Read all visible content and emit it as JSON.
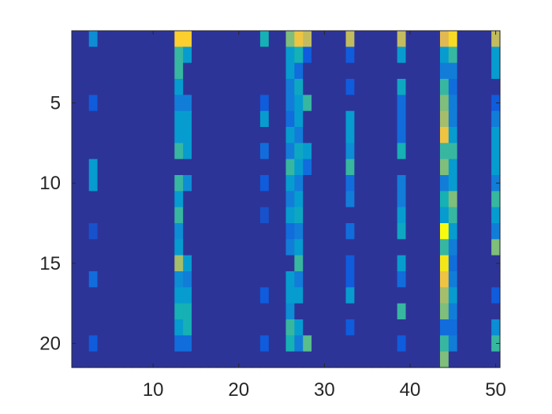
{
  "chart_data": {
    "type": "heatmap",
    "title": "",
    "xlabel": "",
    "ylabel": "",
    "n_cols": 50,
    "n_rows": 21,
    "xlim": [
      0.5,
      50.5
    ],
    "ylim": [
      0.5,
      21.5
    ],
    "y_direction": "reverse",
    "grid": false,
    "colormap": "parula",
    "clim": [
      0,
      1
    ],
    "x_ticks": [
      10,
      20,
      30,
      40,
      50
    ],
    "x_tick_labels": [
      "10",
      "20",
      "30",
      "40",
      "50"
    ],
    "y_ticks": [
      5,
      10,
      15,
      20
    ],
    "y_tick_labels": [
      "5",
      "10",
      "15",
      "20"
    ],
    "background_value": 0.02,
    "cells": [
      {
        "col": 3,
        "row": 1,
        "value": 0.25
      },
      {
        "col": 3,
        "row": 5,
        "value": 0.1
      },
      {
        "col": 3,
        "row": 9,
        "value": 0.3
      },
      {
        "col": 3,
        "row": 10,
        "value": 0.3
      },
      {
        "col": 3,
        "row": 13,
        "value": 0.08
      },
      {
        "col": 3,
        "row": 16,
        "value": 0.15
      },
      {
        "col": 3,
        "row": 20,
        "value": 0.1
      },
      {
        "col": 13,
        "row": 1,
        "value": 0.8
      },
      {
        "col": 14,
        "row": 1,
        "value": 0.8
      },
      {
        "col": 13,
        "row": 2,
        "value": 0.45
      },
      {
        "col": 14,
        "row": 2,
        "value": 0.3
      },
      {
        "col": 13,
        "row": 3,
        "value": 0.45
      },
      {
        "col": 13,
        "row": 4,
        "value": 0.3
      },
      {
        "col": 13,
        "row": 5,
        "value": 0.2
      },
      {
        "col": 14,
        "row": 5,
        "value": 0.2
      },
      {
        "col": 13,
        "row": 6,
        "value": 0.3
      },
      {
        "col": 14,
        "row": 6,
        "value": 0.3
      },
      {
        "col": 13,
        "row": 7,
        "value": 0.3
      },
      {
        "col": 14,
        "row": 7,
        "value": 0.3
      },
      {
        "col": 13,
        "row": 8,
        "value": 0.45
      },
      {
        "col": 14,
        "row": 8,
        "value": 0.3
      },
      {
        "col": 13,
        "row": 10,
        "value": 0.45
      },
      {
        "col": 14,
        "row": 10,
        "value": 0.25
      },
      {
        "col": 13,
        "row": 11,
        "value": 0.3
      },
      {
        "col": 13,
        "row": 12,
        "value": 0.45
      },
      {
        "col": 13,
        "row": 13,
        "value": 0.25
      },
      {
        "col": 13,
        "row": 14,
        "value": 0.3
      },
      {
        "col": 13,
        "row": 15,
        "value": 0.6
      },
      {
        "col": 14,
        "row": 15,
        "value": 0.3
      },
      {
        "col": 13,
        "row": 16,
        "value": 0.25
      },
      {
        "col": 14,
        "row": 16,
        "value": 0.2
      },
      {
        "col": 13,
        "row": 17,
        "value": 0.3
      },
      {
        "col": 14,
        "row": 17,
        "value": 0.3
      },
      {
        "col": 13,
        "row": 18,
        "value": 0.4
      },
      {
        "col": 14,
        "row": 18,
        "value": 0.4
      },
      {
        "col": 13,
        "row": 19,
        "value": 0.3
      },
      {
        "col": 14,
        "row": 19,
        "value": 0.4
      },
      {
        "col": 13,
        "row": 20,
        "value": 0.15
      },
      {
        "col": 14,
        "row": 20,
        "value": 0.15
      },
      {
        "col": 23,
        "row": 1,
        "value": 0.4
      },
      {
        "col": 23,
        "row": 5,
        "value": 0.1
      },
      {
        "col": 23,
        "row": 6,
        "value": 0.3
      },
      {
        "col": 23,
        "row": 8,
        "value": 0.15
      },
      {
        "col": 23,
        "row": 10,
        "value": 0.1
      },
      {
        "col": 23,
        "row": 12,
        "value": 0.08
      },
      {
        "col": 23,
        "row": 17,
        "value": 0.1
      },
      {
        "col": 23,
        "row": 20,
        "value": 0.1
      },
      {
        "col": 26,
        "row": 1,
        "value": 0.55
      },
      {
        "col": 27,
        "row": 1,
        "value": 0.75
      },
      {
        "col": 28,
        "row": 1,
        "value": 0.65
      },
      {
        "col": 26,
        "row": 2,
        "value": 0.3
      },
      {
        "col": 27,
        "row": 2,
        "value": 0.4
      },
      {
        "col": 28,
        "row": 2,
        "value": 0.1
      },
      {
        "col": 26,
        "row": 3,
        "value": 0.3
      },
      {
        "col": 27,
        "row": 3,
        "value": 0.15
      },
      {
        "col": 26,
        "row": 4,
        "value": 0.2
      },
      {
        "col": 27,
        "row": 4,
        "value": 0.35
      },
      {
        "col": 26,
        "row": 5,
        "value": 0.2
      },
      {
        "col": 27,
        "row": 5,
        "value": 0.3
      },
      {
        "col": 28,
        "row": 5,
        "value": 0.45
      },
      {
        "col": 26,
        "row": 6,
        "value": 0.15
      },
      {
        "col": 27,
        "row": 6,
        "value": 0.3
      },
      {
        "col": 26,
        "row": 7,
        "value": 0.3
      },
      {
        "col": 27,
        "row": 7,
        "value": 0.2
      },
      {
        "col": 26,
        "row": 8,
        "value": 0.2
      },
      {
        "col": 27,
        "row": 8,
        "value": 0.35
      },
      {
        "col": 28,
        "row": 8,
        "value": 0.3
      },
      {
        "col": 26,
        "row": 9,
        "value": 0.45
      },
      {
        "col": 27,
        "row": 9,
        "value": 0.3
      },
      {
        "col": 28,
        "row": 9,
        "value": 0.15
      },
      {
        "col": 26,
        "row": 10,
        "value": 0.3
      },
      {
        "col": 27,
        "row": 10,
        "value": 0.2
      },
      {
        "col": 26,
        "row": 11,
        "value": 0.2
      },
      {
        "col": 27,
        "row": 11,
        "value": 0.3
      },
      {
        "col": 26,
        "row": 12,
        "value": 0.3
      },
      {
        "col": 27,
        "row": 12,
        "value": 0.35
      },
      {
        "col": 26,
        "row": 13,
        "value": 0.15
      },
      {
        "col": 27,
        "row": 13,
        "value": 0.2
      },
      {
        "col": 26,
        "row": 14,
        "value": 0.2
      },
      {
        "col": 27,
        "row": 14,
        "value": 0.3
      },
      {
        "col": 27,
        "row": 15,
        "value": 0.45
      },
      {
        "col": 26,
        "row": 16,
        "value": 0.3
      },
      {
        "col": 27,
        "row": 16,
        "value": 0.2
      },
      {
        "col": 26,
        "row": 17,
        "value": 0.3
      },
      {
        "col": 27,
        "row": 17,
        "value": 0.3
      },
      {
        "col": 26,
        "row": 18,
        "value": 0.25
      },
      {
        "col": 26,
        "row": 19,
        "value": 0.45
      },
      {
        "col": 27,
        "row": 19,
        "value": 0.3
      },
      {
        "col": 26,
        "row": 20,
        "value": 0.4
      },
      {
        "col": 27,
        "row": 20,
        "value": 0.2
      },
      {
        "col": 28,
        "row": 20,
        "value": 0.5
      },
      {
        "col": 33,
        "row": 1,
        "value": 0.65
      },
      {
        "col": 33,
        "row": 2,
        "value": 0.1
      },
      {
        "col": 33,
        "row": 4,
        "value": 0.1
      },
      {
        "col": 33,
        "row": 6,
        "value": 0.3
      },
      {
        "col": 33,
        "row": 7,
        "value": 0.3
      },
      {
        "col": 33,
        "row": 8,
        "value": 0.25
      },
      {
        "col": 33,
        "row": 9,
        "value": 0.45
      },
      {
        "col": 33,
        "row": 10,
        "value": 0.15
      },
      {
        "col": 33,
        "row": 11,
        "value": 0.2
      },
      {
        "col": 33,
        "row": 13,
        "value": 0.15
      },
      {
        "col": 33,
        "row": 15,
        "value": 0.1
      },
      {
        "col": 33,
        "row": 16,
        "value": 0.1
      },
      {
        "col": 33,
        "row": 17,
        "value": 0.3
      },
      {
        "col": 33,
        "row": 19,
        "value": 0.1
      },
      {
        "col": 39,
        "row": 1,
        "value": 0.65
      },
      {
        "col": 39,
        "row": 2,
        "value": 0.3
      },
      {
        "col": 39,
        "row": 4,
        "value": 0.35
      },
      {
        "col": 39,
        "row": 5,
        "value": 0.15
      },
      {
        "col": 39,
        "row": 6,
        "value": 0.15
      },
      {
        "col": 39,
        "row": 7,
        "value": 0.15
      },
      {
        "col": 39,
        "row": 8,
        "value": 0.4
      },
      {
        "col": 39,
        "row": 10,
        "value": 0.2
      },
      {
        "col": 39,
        "row": 11,
        "value": 0.2
      },
      {
        "col": 39,
        "row": 12,
        "value": 0.3
      },
      {
        "col": 39,
        "row": 13,
        "value": 0.35
      },
      {
        "col": 39,
        "row": 15,
        "value": 0.3
      },
      {
        "col": 39,
        "row": 16,
        "value": 0.15
      },
      {
        "col": 39,
        "row": 18,
        "value": 0.45
      },
      {
        "col": 39,
        "row": 20,
        "value": 0.1
      },
      {
        "col": 44,
        "row": 1,
        "value": 0.7
      },
      {
        "col": 45,
        "row": 1,
        "value": 0.85
      },
      {
        "col": 44,
        "row": 2,
        "value": 0.3
      },
      {
        "col": 45,
        "row": 2,
        "value": 0.45
      },
      {
        "col": 44,
        "row": 3,
        "value": 0.2
      },
      {
        "col": 45,
        "row": 3,
        "value": 0.2
      },
      {
        "col": 44,
        "row": 4,
        "value": 0.45
      },
      {
        "col": 45,
        "row": 4,
        "value": 0.15
      },
      {
        "col": 44,
        "row": 5,
        "value": 0.55
      },
      {
        "col": 45,
        "row": 5,
        "value": 0.2
      },
      {
        "col": 44,
        "row": 6,
        "value": 0.6
      },
      {
        "col": 45,
        "row": 6,
        "value": 0.2
      },
      {
        "col": 44,
        "row": 7,
        "value": 0.75
      },
      {
        "col": 45,
        "row": 7,
        "value": 0.3
      },
      {
        "col": 44,
        "row": 8,
        "value": 0.45
      },
      {
        "col": 45,
        "row": 8,
        "value": 0.45
      },
      {
        "col": 44,
        "row": 9,
        "value": 0.55
      },
      {
        "col": 45,
        "row": 9,
        "value": 0.3
      },
      {
        "col": 44,
        "row": 10,
        "value": 0.2
      },
      {
        "col": 45,
        "row": 10,
        "value": 0.3
      },
      {
        "col": 44,
        "row": 11,
        "value": 0.4
      },
      {
        "col": 45,
        "row": 11,
        "value": 0.55
      },
      {
        "col": 44,
        "row": 12,
        "value": 0.3
      },
      {
        "col": 45,
        "row": 12,
        "value": 0.45
      },
      {
        "col": 44,
        "row": 13,
        "value": 1.0
      },
      {
        "col": 45,
        "row": 13,
        "value": 0.3
      },
      {
        "col": 44,
        "row": 14,
        "value": 0.45
      },
      {
        "col": 45,
        "row": 14,
        "value": 0.2
      },
      {
        "col": 44,
        "row": 15,
        "value": 0.9
      },
      {
        "col": 45,
        "row": 15,
        "value": 0.15
      },
      {
        "col": 44,
        "row": 16,
        "value": 0.75
      },
      {
        "col": 45,
        "row": 16,
        "value": 0.2
      },
      {
        "col": 44,
        "row": 17,
        "value": 0.6
      },
      {
        "col": 45,
        "row": 17,
        "value": 0.3
      },
      {
        "col": 44,
        "row": 18,
        "value": 0.55
      },
      {
        "col": 45,
        "row": 18,
        "value": 0.2
      },
      {
        "col": 44,
        "row": 19,
        "value": 0.15
      },
      {
        "col": 45,
        "row": 19,
        "value": 0.15
      },
      {
        "col": 44,
        "row": 20,
        "value": 0.45
      },
      {
        "col": 45,
        "row": 20,
        "value": 0.2
      },
      {
        "col": 44,
        "row": 21,
        "value": 0.55
      },
      {
        "col": 50,
        "row": 1,
        "value": 0.65
      },
      {
        "col": 50,
        "row": 2,
        "value": 0.3
      },
      {
        "col": 50,
        "row": 3,
        "value": 0.3
      },
      {
        "col": 50,
        "row": 5,
        "value": 0.1
      },
      {
        "col": 50,
        "row": 6,
        "value": 0.2
      },
      {
        "col": 50,
        "row": 7,
        "value": 0.3
      },
      {
        "col": 50,
        "row": 8,
        "value": 0.3
      },
      {
        "col": 50,
        "row": 9,
        "value": 0.3
      },
      {
        "col": 50,
        "row": 10,
        "value": 0.2
      },
      {
        "col": 50,
        "row": 11,
        "value": 0.45
      },
      {
        "col": 50,
        "row": 12,
        "value": 0.3
      },
      {
        "col": 50,
        "row": 13,
        "value": 0.2
      },
      {
        "col": 50,
        "row": 14,
        "value": 0.55
      },
      {
        "col": 50,
        "row": 17,
        "value": 0.1
      },
      {
        "col": 50,
        "row": 19,
        "value": 0.25
      },
      {
        "col": 50,
        "row": 20,
        "value": 0.45
      }
    ]
  },
  "colors": {
    "axis": "#262626",
    "background": "#ffffff"
  }
}
